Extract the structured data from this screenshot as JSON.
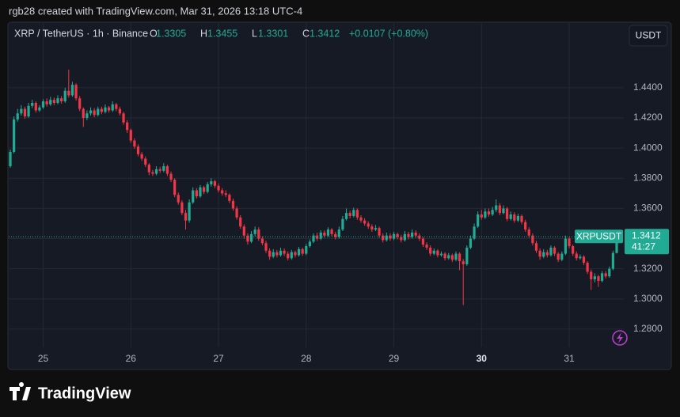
{
  "header": {
    "attribution": "rgb28 created with TradingView.com, Mar 31, 2026 13:18 UTC-4"
  },
  "footer": {
    "brand": "TradingView"
  },
  "chart_data": {
    "type": "candlestick",
    "title": "XRP / TetherUS · 1h · Binance",
    "legend_keys": [
      "O",
      "H",
      "L",
      "C"
    ],
    "change": "+0.0107 (+0.80%)",
    "currency": "USDT",
    "symbol": "XRPUSDT",
    "countdown": "41:27",
    "up_color": "#22ab94",
    "down_color": "#f23645",
    "grid": true,
    "ylim": [
      1.2532,
      1.4835
    ],
    "yticks": [
      {
        "value": 1.28,
        "label": "1.2800"
      },
      {
        "value": 1.3,
        "label": "1.3000"
      },
      {
        "value": 1.32,
        "label": "1.3200"
      },
      {
        "value": 1.34,
        "label": "1.3400"
      },
      {
        "value": 1.36,
        "label": "1.3600"
      },
      {
        "value": 1.38,
        "label": "1.3800"
      },
      {
        "value": 1.4,
        "label": "1.4000"
      },
      {
        "value": 1.42,
        "label": "1.4200"
      },
      {
        "value": 1.44,
        "label": "1.4400"
      }
    ],
    "xlim": [
      -0.65,
      167.95
    ],
    "xticks": [
      {
        "value": 9,
        "label": "25"
      },
      {
        "value": 33,
        "label": "26"
      },
      {
        "value": 57,
        "label": "27"
      },
      {
        "value": 81,
        "label": "28"
      },
      {
        "value": 105,
        "label": "29"
      },
      {
        "value": 129,
        "label": "30"
      },
      {
        "value": 153,
        "label": "31"
      }
    ],
    "open": [
      1.388,
      1.3975,
      1.419,
      1.423,
      1.426,
      1.421,
      1.428,
      1.43,
      1.425,
      1.427,
      1.431,
      1.429,
      1.432,
      1.43,
      1.433,
      1.431,
      1.438,
      1.435,
      1.442,
      1.433,
      1.426,
      1.42,
      1.423,
      1.425,
      1.422,
      1.426,
      1.424,
      1.427,
      1.425,
      1.429,
      1.426,
      1.423,
      1.417,
      1.412,
      1.405,
      1.401,
      1.396,
      1.393,
      1.389,
      1.384,
      1.383,
      1.386,
      1.385,
      1.388,
      1.383,
      1.379,
      1.369,
      1.364,
      1.357,
      1.352,
      1.364,
      1.372,
      1.368,
      1.374,
      1.371,
      1.376,
      1.378,
      1.375,
      1.372,
      1.37,
      1.369,
      1.365,
      1.36,
      1.354,
      1.348,
      1.342,
      1.338,
      1.343,
      1.346,
      1.34,
      1.337,
      1.332,
      1.328,
      1.331,
      1.329,
      1.332,
      1.33,
      1.327,
      1.331,
      1.329,
      1.333,
      1.33,
      1.335,
      1.338,
      1.342,
      1.34,
      1.344,
      1.342,
      1.346,
      1.343,
      1.341,
      1.346,
      1.353,
      1.357,
      1.355,
      1.359,
      1.354,
      1.352,
      1.35,
      1.348,
      1.346,
      1.347,
      1.342,
      1.339,
      1.342,
      1.34,
      1.343,
      1.341,
      1.339,
      1.343,
      1.341,
      1.344,
      1.342,
      1.34,
      1.336,
      1.334,
      1.33,
      1.332,
      1.329,
      1.33,
      1.327,
      1.329,
      1.326,
      1.33,
      1.325,
      1.323,
      1.334,
      1.34,
      1.348,
      1.356,
      1.354,
      1.358,
      1.356,
      1.359,
      1.362,
      1.357,
      1.36,
      1.353,
      1.356,
      1.352,
      1.355,
      1.351,
      1.346,
      1.342,
      1.337,
      1.332,
      1.328,
      1.331,
      1.329,
      1.334,
      1.33,
      1.326,
      1.33,
      1.34,
      1.335,
      1.33,
      1.327,
      1.328,
      1.324,
      1.318,
      1.313,
      1.315,
      1.312,
      1.317,
      1.315,
      1.32,
      1.3305
    ],
    "high": [
      1.399,
      1.421,
      1.426,
      1.4285,
      1.4275,
      1.43,
      1.432,
      1.431,
      1.4285,
      1.4325,
      1.433,
      1.434,
      1.4335,
      1.435,
      1.4345,
      1.44,
      1.452,
      1.444,
      1.443,
      1.4345,
      1.427,
      1.425,
      1.427,
      1.4265,
      1.4275,
      1.4275,
      1.429,
      1.428,
      1.431,
      1.43,
      1.4275,
      1.424,
      1.4185,
      1.413,
      1.4065,
      1.4025,
      1.3975,
      1.3945,
      1.39,
      1.3855,
      1.388,
      1.3875,
      1.39,
      1.389,
      1.3845,
      1.38,
      1.3705,
      1.3655,
      1.359,
      1.366,
      1.374,
      1.3735,
      1.3755,
      1.375,
      1.3775,
      1.38,
      1.379,
      1.3765,
      1.3735,
      1.372,
      1.37,
      1.3665,
      1.3615,
      1.3555,
      1.3495,
      1.3435,
      1.345,
      1.348,
      1.3475,
      1.3415,
      1.3385,
      1.3335,
      1.333,
      1.3325,
      1.334,
      1.3335,
      1.3315,
      1.3325,
      1.332,
      1.3345,
      1.334,
      1.3365,
      1.3395,
      1.3435,
      1.344,
      1.3455,
      1.3455,
      1.3475,
      1.347,
      1.3445,
      1.348,
      1.355,
      1.36,
      1.3585,
      1.3605,
      1.36,
      1.3555,
      1.3535,
      1.3515,
      1.3495,
      1.349,
      1.348,
      1.3435,
      1.344,
      1.3435,
      1.3445,
      1.344,
      1.3425,
      1.345,
      1.3445,
      1.346,
      1.3455,
      1.3435,
      1.341,
      1.3375,
      1.3355,
      1.3335,
      1.333,
      1.3315,
      1.331,
      1.3305,
      1.33,
      1.3315,
      1.331,
      1.3265,
      1.3355,
      1.342,
      1.35,
      1.358,
      1.359,
      1.36,
      1.36,
      1.361,
      1.366,
      1.3635,
      1.362,
      1.361,
      1.358,
      1.3575,
      1.3565,
      1.356,
      1.3525,
      1.3475,
      1.3435,
      1.3385,
      1.3335,
      1.333,
      1.3325,
      1.3355,
      1.335,
      1.331,
      1.3315,
      1.342,
      1.341,
      1.336,
      1.3315,
      1.3295,
      1.329,
      1.325,
      1.3195,
      1.317,
      1.316,
      1.3185,
      1.3185,
      1.3215,
      1.332,
      1.3455
    ],
    "low": [
      1.387,
      1.3965,
      1.4175,
      1.4215,
      1.4195,
      1.42,
      1.4265,
      1.4235,
      1.424,
      1.426,
      1.4275,
      1.428,
      1.4285,
      1.429,
      1.4295,
      1.43,
      1.4335,
      1.434,
      1.4315,
      1.4245,
      1.414,
      1.4185,
      1.4215,
      1.4205,
      1.421,
      1.4225,
      1.423,
      1.4235,
      1.424,
      1.4245,
      1.4215,
      1.4155,
      1.41,
      1.4035,
      1.3995,
      1.3945,
      1.3915,
      1.3875,
      1.382,
      1.3815,
      1.382,
      1.3835,
      1.384,
      1.3815,
      1.3775,
      1.3675,
      1.3625,
      1.3555,
      1.346,
      1.3505,
      1.363,
      1.3665,
      1.367,
      1.3695,
      1.37,
      1.3745,
      1.3735,
      1.3705,
      1.3685,
      1.3675,
      1.3635,
      1.3585,
      1.3525,
      1.3465,
      1.34,
      1.336,
      1.337,
      1.3415,
      1.3385,
      1.3355,
      1.3305,
      1.326,
      1.327,
      1.3275,
      1.328,
      1.3285,
      1.3255,
      1.326,
      1.3275,
      1.328,
      1.3285,
      1.329,
      1.334,
      1.337,
      1.3385,
      1.339,
      1.3405,
      1.341,
      1.3415,
      1.3395,
      1.34,
      1.345,
      1.352,
      1.3535,
      1.354,
      1.3525,
      1.3505,
      1.3485,
      1.3465,
      1.3445,
      1.345,
      1.3405,
      1.3375,
      1.338,
      1.3385,
      1.339,
      1.3395,
      1.3375,
      1.338,
      1.3395,
      1.34,
      1.3405,
      1.3385,
      1.3345,
      1.3325,
      1.3285,
      1.329,
      1.3275,
      1.328,
      1.3255,
      1.326,
      1.3245,
      1.325,
      1.319,
      1.296,
      1.322,
      1.333,
      1.339,
      1.347,
      1.3525,
      1.353,
      1.3545,
      1.355,
      1.3575,
      1.3555,
      1.356,
      1.3515,
      1.352,
      1.3505,
      1.351,
      1.3495,
      1.3445,
      1.3405,
      1.3355,
      1.3305,
      1.326,
      1.327,
      1.3275,
      1.328,
      1.3285,
      1.3245,
      1.325,
      1.329,
      1.3335,
      1.3285,
      1.3255,
      1.326,
      1.3225,
      1.3165,
      1.306,
      1.311,
      1.308,
      1.311,
      1.3135,
      1.314,
      1.319,
      1.3301
    ],
    "close": [
      1.3975,
      1.419,
      1.423,
      1.426,
      1.421,
      1.428,
      1.43,
      1.425,
      1.427,
      1.431,
      1.429,
      1.432,
      1.43,
      1.433,
      1.431,
      1.438,
      1.435,
      1.442,
      1.433,
      1.426,
      1.42,
      1.423,
      1.425,
      1.422,
      1.426,
      1.424,
      1.427,
      1.425,
      1.429,
      1.426,
      1.423,
      1.417,
      1.412,
      1.405,
      1.401,
      1.396,
      1.393,
      1.389,
      1.384,
      1.383,
      1.386,
      1.385,
      1.388,
      1.383,
      1.379,
      1.369,
      1.364,
      1.357,
      1.352,
      1.364,
      1.372,
      1.368,
      1.374,
      1.371,
      1.376,
      1.378,
      1.375,
      1.372,
      1.37,
      1.369,
      1.365,
      1.36,
      1.354,
      1.348,
      1.342,
      1.338,
      1.343,
      1.346,
      1.34,
      1.337,
      1.332,
      1.328,
      1.331,
      1.329,
      1.332,
      1.33,
      1.327,
      1.331,
      1.329,
      1.333,
      1.33,
      1.335,
      1.338,
      1.342,
      1.34,
      1.344,
      1.342,
      1.346,
      1.343,
      1.341,
      1.346,
      1.353,
      1.357,
      1.355,
      1.359,
      1.354,
      1.352,
      1.35,
      1.348,
      1.346,
      1.347,
      1.342,
      1.339,
      1.342,
      1.34,
      1.343,
      1.341,
      1.339,
      1.343,
      1.341,
      1.344,
      1.342,
      1.34,
      1.336,
      1.334,
      1.33,
      1.332,
      1.329,
      1.33,
      1.327,
      1.329,
      1.326,
      1.33,
      1.325,
      1.323,
      1.334,
      1.34,
      1.348,
      1.356,
      1.354,
      1.358,
      1.356,
      1.359,
      1.362,
      1.357,
      1.36,
      1.353,
      1.356,
      1.352,
      1.355,
      1.351,
      1.346,
      1.342,
      1.337,
      1.332,
      1.328,
      1.331,
      1.329,
      1.334,
      1.33,
      1.326,
      1.33,
      1.34,
      1.335,
      1.33,
      1.327,
      1.328,
      1.324,
      1.318,
      1.313,
      1.315,
      1.312,
      1.317,
      1.315,
      1.32,
      1.3305,
      1.3412
    ]
  }
}
